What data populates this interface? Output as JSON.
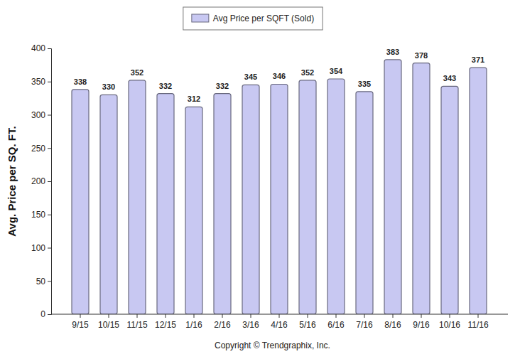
{
  "chart_data": {
    "type": "bar",
    "y_label": "Avg. Price per SQ. FT.",
    "annotations": [
      "Copyright © Trendgraphix, Inc."
    ],
    "categories": [
      "9/15",
      "10/15",
      "11/15",
      "12/15",
      "1/16",
      "2/16",
      "3/16",
      "4/16",
      "5/16",
      "6/16",
      "7/16",
      "8/16",
      "9/16",
      "10/16",
      "11/16"
    ],
    "series": [
      {
        "name": "Avg Price per SQFT (Sold)",
        "color": "#c8c8f2",
        "values": [
          338,
          330,
          352,
          332,
          312,
          332,
          345,
          346,
          352,
          354,
          335,
          383,
          378,
          343,
          371
        ]
      }
    ],
    "ylim": [
      0,
      400
    ],
    "yticks": [
      0,
      50,
      100,
      150,
      200,
      250,
      300,
      350,
      400
    ],
    "grid": false,
    "legend": "top",
    "data_labels": true
  }
}
